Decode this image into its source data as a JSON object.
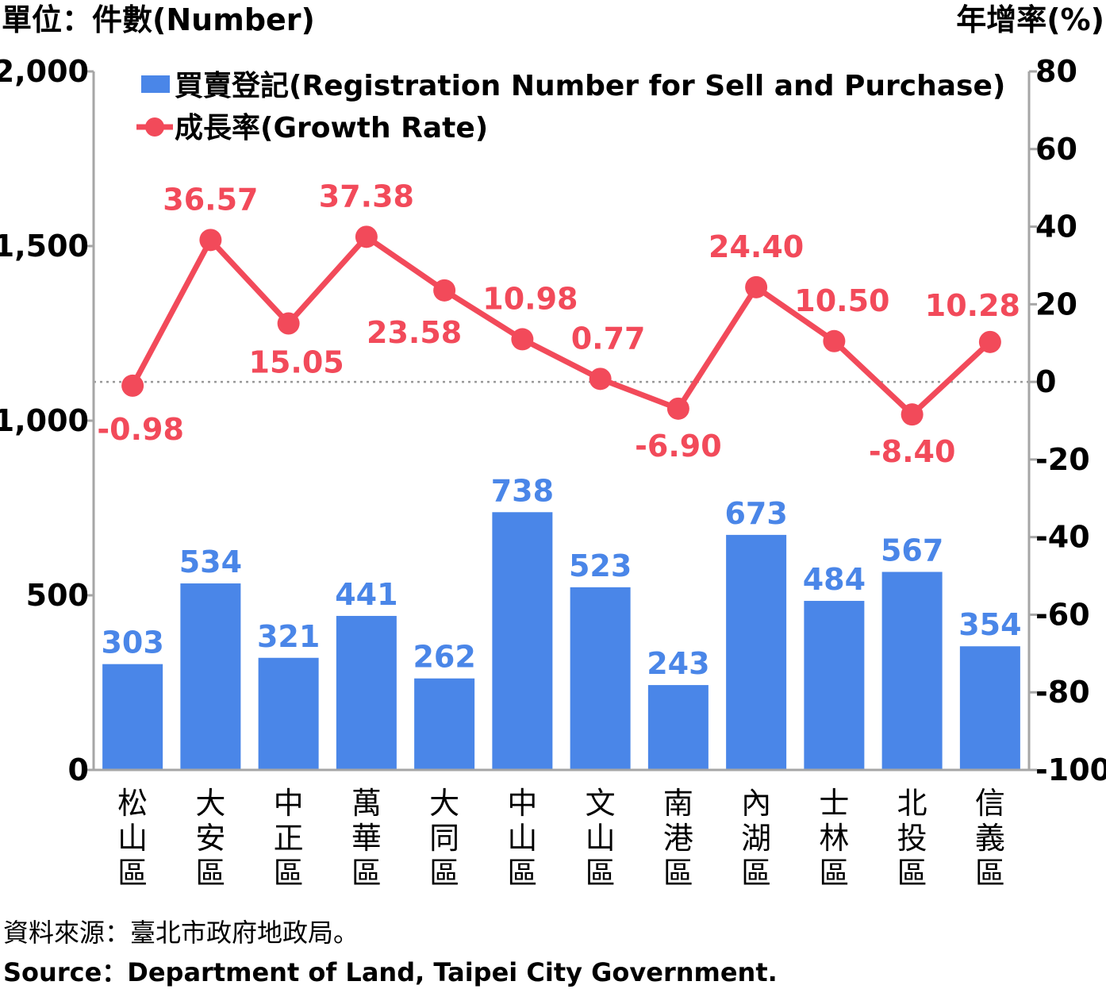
{
  "chart_data": {
    "type": "bar",
    "left_axis_unit": "單位：件數(Number)",
    "right_axis_unit": "年增率(%)",
    "categories": [
      "松山區",
      "大安區",
      "中正區",
      "萬華區",
      "大同區",
      "中山區",
      "文山區",
      "南港區",
      "內湖區",
      "士林區",
      "北投區",
      "信義區"
    ],
    "series": [
      {
        "name": "買賣登記(Registration Number for Sell and Purchase)",
        "type": "bar",
        "axis": "left",
        "values": [
          303,
          534,
          321,
          441,
          262,
          738,
          523,
          243,
          673,
          484,
          567,
          354
        ],
        "labels": [
          "303",
          "534",
          "321",
          "441",
          "262",
          "738",
          "523",
          "243",
          "673",
          "484",
          "567",
          "354"
        ],
        "color": "#4a86e8"
      },
      {
        "name": "成長率(Growth Rate)",
        "type": "line",
        "axis": "right",
        "values": [
          -0.98,
          36.57,
          15.05,
          37.38,
          23.58,
          10.98,
          0.77,
          -6.9,
          24.4,
          10.5,
          -8.4,
          10.28
        ],
        "labels": [
          "-0.98",
          "36.57",
          "15.05",
          "37.38",
          "23.58",
          "10.98",
          "0.77",
          "-6.90",
          "24.40",
          "10.50",
          "-8.40",
          "10.28"
        ],
        "color": "#f24a5a"
      }
    ],
    "left_ylim": [
      0,
      2000
    ],
    "left_ticks": [
      "0",
      "500",
      "1,000",
      "1,500",
      "2,000"
    ],
    "left_tick_values": [
      0,
      500,
      1000,
      1500,
      2000
    ],
    "right_ylim": [
      -100,
      80
    ],
    "right_ticks": [
      "-100",
      "-80",
      "-60",
      "-40",
      "-20",
      "0",
      "20",
      "40",
      "60",
      "80"
    ],
    "right_tick_values": [
      -100,
      -80,
      -60,
      -40,
      -20,
      0,
      20,
      40,
      60,
      80
    ],
    "grid": false,
    "legend_position": "top"
  },
  "footer": {
    "source_zh": "資料來源：臺北市政府地政局。",
    "source_en": "Source：Department of Land, Taipei City Government."
  }
}
